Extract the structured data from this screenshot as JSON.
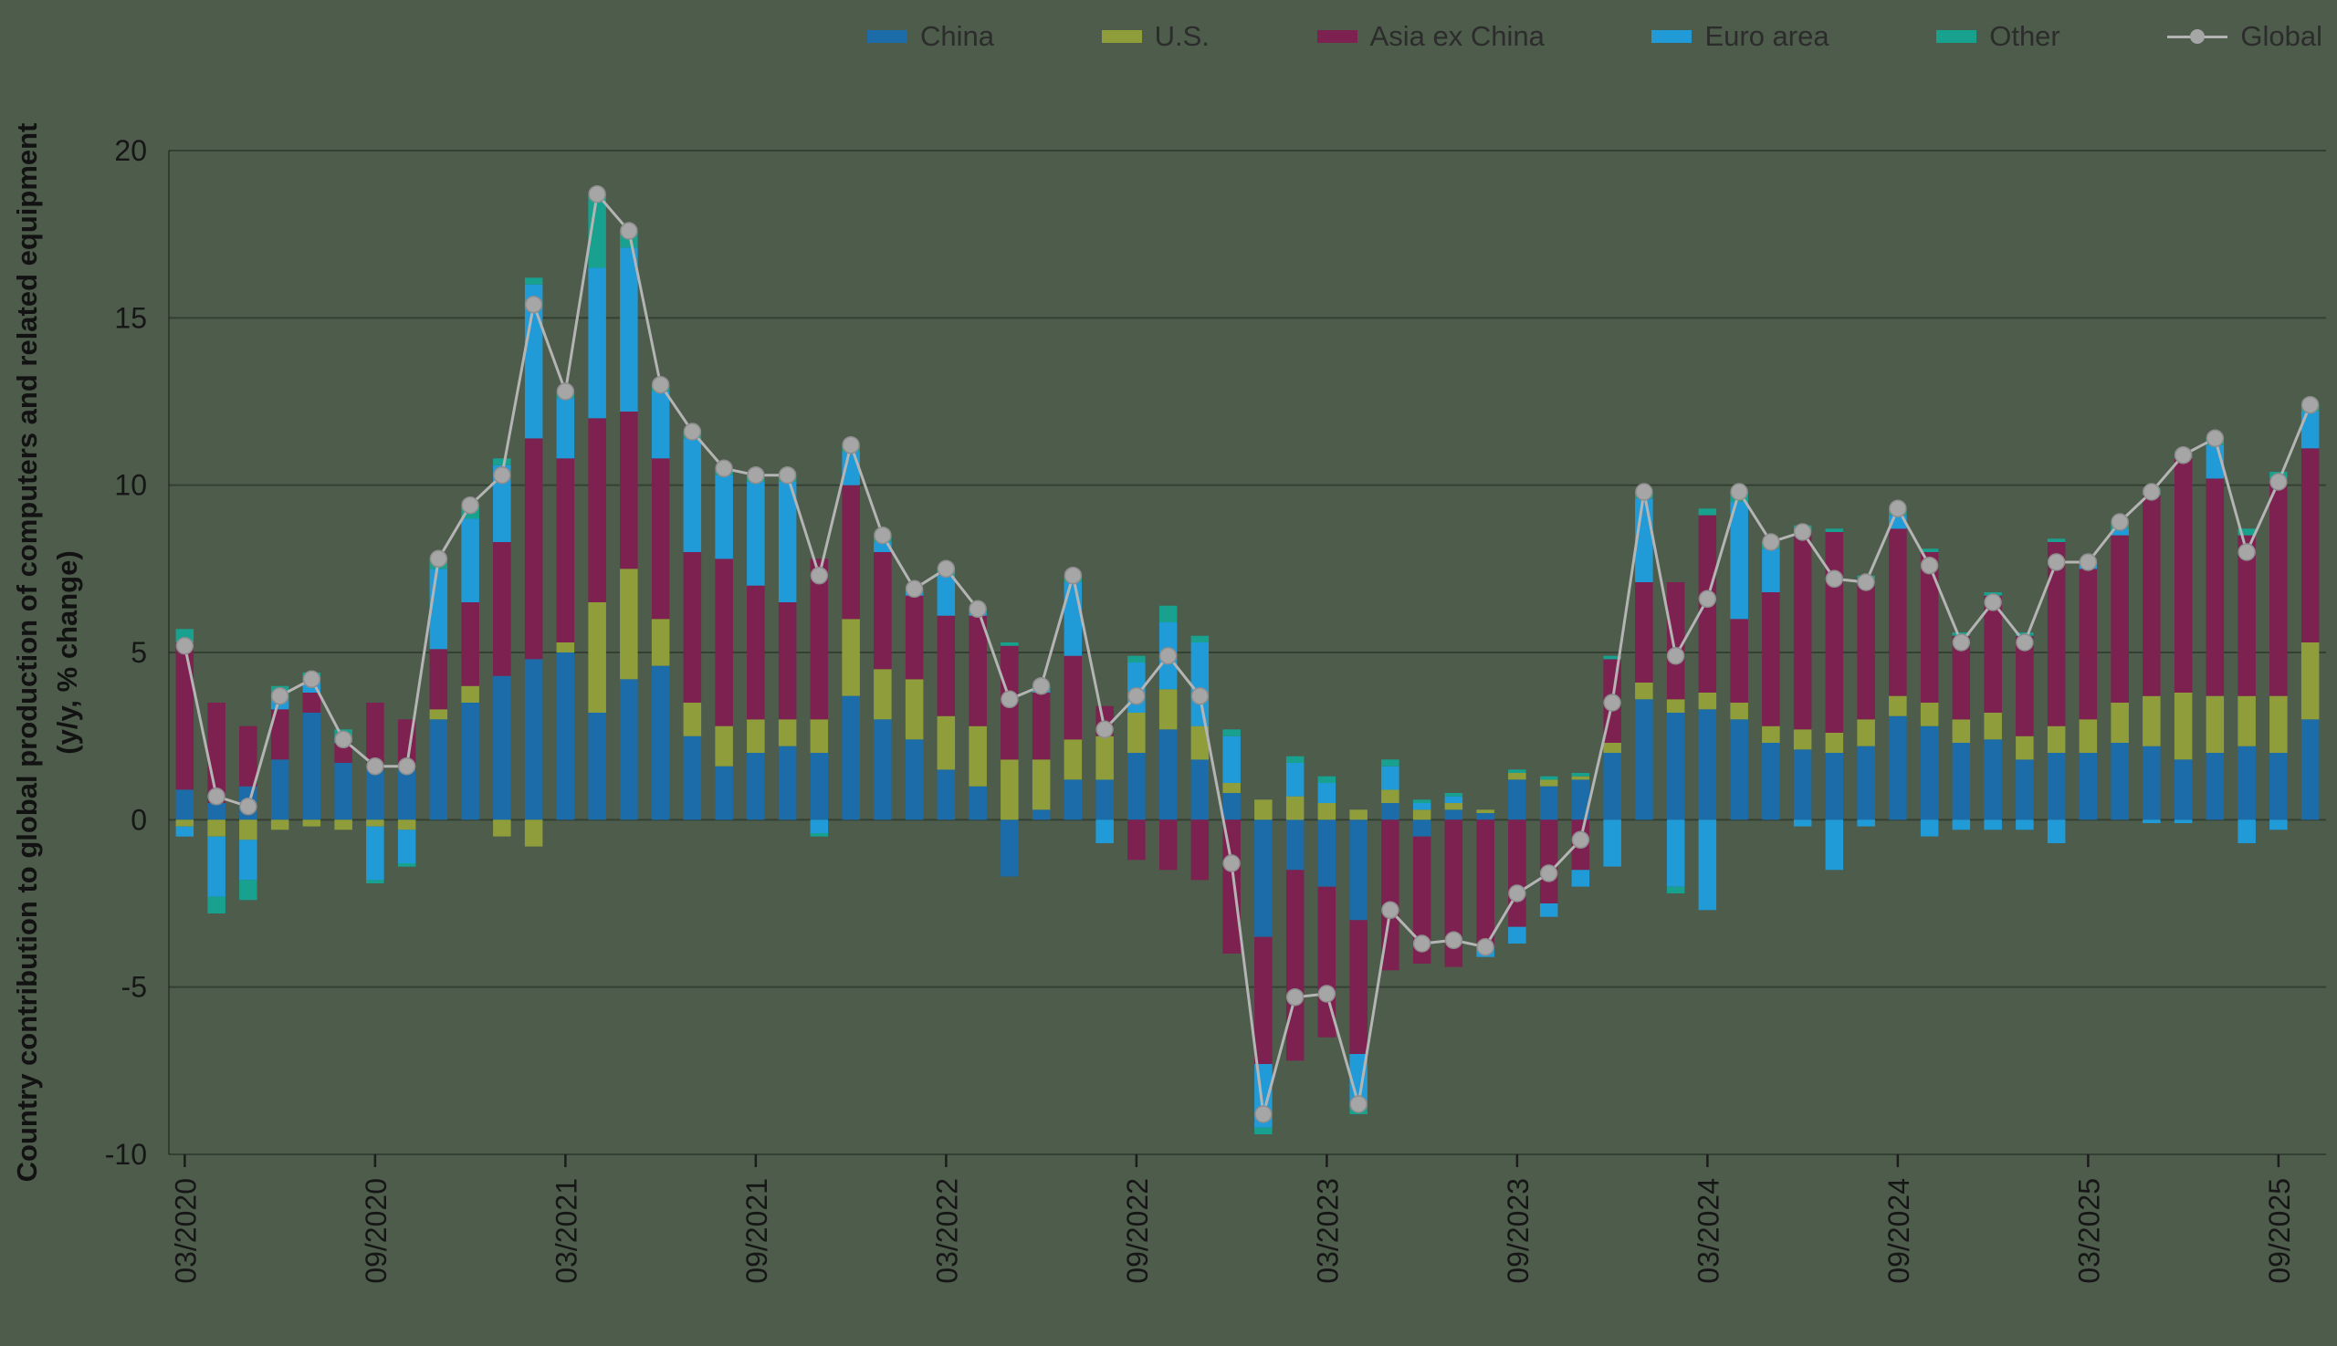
{
  "page": {
    "background": "#4d5c4b",
    "text_color": "#161616"
  },
  "legend": {
    "position": "top"
  },
  "chart_data": {
    "type": "bar",
    "stacked": true,
    "grid": true,
    "title": "",
    "ylabel_line1": "Country contribution to global production of computers and related equipment",
    "ylabel_line2": "(y/y, % change)",
    "ylim": [
      -10,
      20
    ],
    "yticks": [
      -10,
      -5,
      0,
      5,
      10,
      15,
      20
    ],
    "xtick_indices": [
      0,
      6,
      12,
      18,
      24,
      30,
      36,
      42,
      48,
      54,
      60,
      66
    ],
    "x": [
      "03/2020",
      "04/2020",
      "05/2020",
      "06/2020",
      "07/2020",
      "08/2020",
      "09/2020",
      "10/2020",
      "11/2020",
      "12/2020",
      "01/2021",
      "02/2021",
      "03/2021",
      "04/2021",
      "05/2021",
      "06/2021",
      "07/2021",
      "08/2021",
      "09/2021",
      "10/2021",
      "11/2021",
      "12/2021",
      "01/2022",
      "02/2022",
      "03/2022",
      "04/2022",
      "05/2022",
      "06/2022",
      "07/2022",
      "08/2022",
      "09/2022",
      "10/2022",
      "11/2022",
      "12/2022",
      "01/2023",
      "02/2023",
      "03/2023",
      "04/2023",
      "05/2023",
      "06/2023",
      "07/2023",
      "08/2023",
      "09/2023",
      "10/2023",
      "11/2023",
      "12/2023",
      "01/2024",
      "02/2024",
      "03/2024",
      "04/2024",
      "05/2024",
      "06/2024",
      "07/2024",
      "08/2024",
      "09/2024",
      "10/2024",
      "11/2024",
      "12/2024",
      "01/2025",
      "02/2025",
      "03/2025",
      "04/2025",
      "05/2025",
      "06/2025",
      "07/2025",
      "08/2025",
      "09/2025",
      "10/2025"
    ],
    "series": [
      {
        "name": "China",
        "color": "#1b6ca8",
        "values": [
          0.9,
          0.5,
          1.0,
          1.8,
          3.2,
          1.7,
          1.5,
          1.5,
          3.0,
          3.5,
          4.3,
          4.8,
          5.0,
          3.2,
          4.2,
          4.6,
          2.5,
          1.6,
          2.0,
          2.2,
          2.0,
          3.7,
          3.0,
          2.4,
          1.5,
          1.0,
          -1.7,
          0.3,
          1.2,
          1.2,
          2.0,
          2.7,
          1.8,
          0.8,
          -3.5,
          -1.5,
          -2.0,
          -3.0,
          0.5,
          -0.5,
          0.3,
          0.2,
          1.2,
          1.0,
          1.2,
          2.0,
          3.6,
          3.2,
          3.3,
          3.0,
          2.3,
          2.1,
          2.0,
          2.2,
          3.1,
          2.8,
          2.3,
          2.4,
          1.8,
          2.0,
          2.0,
          2.3,
          2.2,
          1.8,
          2.0,
          2.2,
          2.0,
          3.0
        ]
      },
      {
        "name": "U.S.",
        "color": "#8f9e3b",
        "values": [
          -0.2,
          -0.5,
          -0.6,
          -0.3,
          -0.2,
          -0.3,
          -0.2,
          -0.3,
          0.3,
          0.5,
          -0.5,
          -0.8,
          0.3,
          3.3,
          3.3,
          1.4,
          1.0,
          1.2,
          1.0,
          0.8,
          1.0,
          2.3,
          1.5,
          1.8,
          1.6,
          1.8,
          1.8,
          1.5,
          1.2,
          1.3,
          1.2,
          1.2,
          1.0,
          0.3,
          0.6,
          0.7,
          0.5,
          0.3,
          0.4,
          0.3,
          0.2,
          0.1,
          0.2,
          0.2,
          0.1,
          0.3,
          0.5,
          0.4,
          0.5,
          0.5,
          0.5,
          0.6,
          0.6,
          0.8,
          0.6,
          0.7,
          0.7,
          0.8,
          0.7,
          0.8,
          1.0,
          1.2,
          1.5,
          2.0,
          1.7,
          1.5,
          1.7,
          2.3
        ]
      },
      {
        "name": "Asia ex China",
        "color": "#7d2150",
        "values": [
          4.4,
          3.0,
          1.8,
          1.5,
          0.6,
          0.6,
          2.0,
          1.5,
          1.8,
          2.5,
          4.0,
          6.6,
          5.5,
          5.5,
          4.7,
          4.8,
          4.5,
          5.0,
          4.0,
          3.5,
          4.8,
          4.0,
          3.5,
          2.5,
          3.0,
          3.3,
          3.4,
          2.0,
          2.5,
          0.9,
          -1.2,
          -1.5,
          -1.8,
          -4.0,
          -3.8,
          -5.7,
          -4.5,
          -4.0,
          -4.5,
          -3.8,
          -4.4,
          -3.8,
          -3.2,
          -2.5,
          -1.5,
          2.5,
          3.0,
          3.5,
          5.3,
          2.5,
          4.0,
          5.9,
          6.0,
          4.2,
          5.0,
          4.5,
          2.5,
          3.5,
          3.0,
          5.5,
          4.5,
          5.0,
          6.0,
          7.0,
          6.5,
          4.8,
          6.5,
          5.8
        ]
      },
      {
        "name": "Euro area",
        "color": "#219bd8",
        "values": [
          -0.3,
          -1.8,
          -1.2,
          0.3,
          0.3,
          0.2,
          -1.6,
          -1.0,
          2.4,
          2.5,
          2.3,
          4.6,
          1.8,
          4.5,
          4.9,
          2.0,
          3.4,
          2.5,
          3.1,
          3.6,
          -0.4,
          1.0,
          0.3,
          0.1,
          1.2,
          0.1,
          0,
          0.1,
          2.2,
          -0.7,
          1.5,
          2.0,
          2.5,
          1.4,
          -1.9,
          1.0,
          0.6,
          -1.6,
          0.7,
          0.2,
          0.2,
          -0.3,
          -0.5,
          -0.4,
          -0.5,
          -1.4,
          2.5,
          -2.0,
          -2.7,
          3.5,
          1.3,
          -0.2,
          -1.5,
          -0.2,
          0.4,
          -0.5,
          -0.3,
          -0.3,
          -0.3,
          -0.7,
          0.1,
          0.2,
          -0.1,
          -0.1,
          1.0,
          -0.7,
          -0.3,
          1.1
        ]
      },
      {
        "name": "Other",
        "color": "#17a18e",
        "values": [
          0.4,
          -0.5,
          -0.6,
          0.4,
          0.3,
          0.2,
          -0.1,
          -0.1,
          0.3,
          0.4,
          0.2,
          0.2,
          0.2,
          2.2,
          0.5,
          0.2,
          0.2,
          0.2,
          0.2,
          0.2,
          -0.1,
          0.2,
          0.2,
          0.1,
          0.2,
          0.1,
          0.1,
          0.1,
          0.2,
          0,
          0.2,
          0.5,
          0.2,
          0.2,
          -0.2,
          0.2,
          0.2,
          -0.2,
          0.2,
          0.1,
          0.1,
          0,
          0.1,
          0.1,
          0.1,
          0.1,
          0.2,
          -0.2,
          0.2,
          0.3,
          0.2,
          0.2,
          0.1,
          0.1,
          0.2,
          0.1,
          0.1,
          0.1,
          0.1,
          0.1,
          0.1,
          0.2,
          0.2,
          0.2,
          0.2,
          0.2,
          0.2,
          0.2
        ]
      }
    ],
    "line_series": {
      "name": "Global",
      "color": "#b4b4b4",
      "marker_color": "#a6a6a6",
      "values": [
        5.2,
        0.7,
        0.4,
        3.7,
        4.2,
        2.4,
        1.6,
        1.6,
        7.8,
        9.4,
        10.3,
        15.4,
        12.8,
        18.7,
        17.6,
        13.0,
        11.6,
        10.5,
        10.3,
        10.3,
        7.3,
        11.2,
        8.5,
        6.9,
        7.5,
        6.3,
        3.6,
        4.0,
        7.3,
        2.7,
        3.7,
        4.9,
        3.7,
        -1.3,
        -8.8,
        -5.3,
        -5.2,
        -8.5,
        -2.7,
        -3.7,
        -3.6,
        -3.8,
        -2.2,
        -1.6,
        -0.6,
        3.5,
        9.8,
        4.9,
        6.6,
        9.8,
        8.3,
        8.6,
        7.2,
        7.1,
        9.3,
        7.6,
        5.3,
        6.5,
        5.3,
        7.7,
        7.7,
        8.9,
        9.8,
        10.9,
        11.4,
        8.0,
        10.1,
        12.4
      ]
    }
  }
}
